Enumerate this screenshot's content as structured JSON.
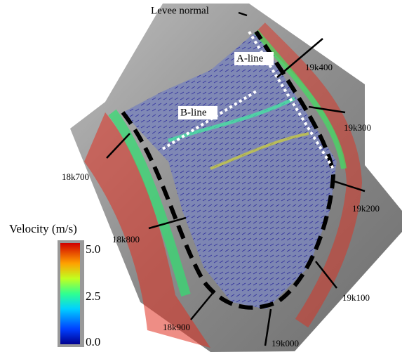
{
  "figure": {
    "levee_label": "Levee normal",
    "lines": {
      "a_line": "A-line",
      "b_line": "B-line"
    },
    "stations": [
      "19k400",
      "19k300",
      "18k700",
      "19k200",
      "18k800",
      "19k100",
      "18k900",
      "19k000"
    ],
    "colorbar": {
      "title": "Velocity (m/s)",
      "ticks": [
        "5.0",
        "2.5",
        "0.0"
      ]
    }
  }
}
